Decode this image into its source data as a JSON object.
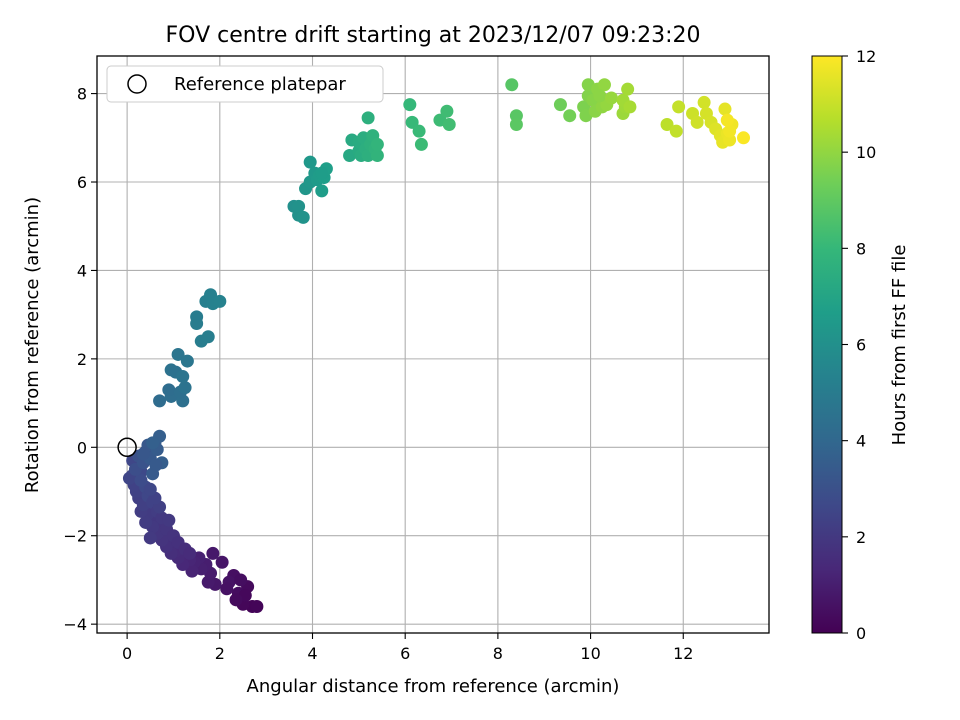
{
  "chart_data": {
    "type": "scatter",
    "title": "FOV centre drift starting at 2023/12/07 09:23:20",
    "xlabel": "Angular distance from reference (arcmin)",
    "ylabel": "Rotation from reference (arcmin)",
    "xlim": [
      -0.65,
      13.85
    ],
    "ylim": [
      -4.2,
      8.85
    ],
    "xticks": [
      0,
      2,
      4,
      6,
      8,
      10,
      12
    ],
    "yticks": [
      -4,
      -2,
      0,
      2,
      4,
      6,
      8
    ],
    "grid": true,
    "legend": {
      "position": "top-left",
      "entries": [
        "Reference platepar"
      ]
    },
    "reference_point": {
      "x": 0,
      "y": 0,
      "label": "Reference platepar"
    },
    "colorbar": {
      "label": "Hours from first FF file",
      "range": [
        0,
        12
      ],
      "ticks": [
        0,
        2,
        4,
        6,
        8,
        10,
        12
      ],
      "colormap": "viridis",
      "stops": [
        "#440154",
        "#482878",
        "#3e4989",
        "#31688e",
        "#26828e",
        "#1f9e89",
        "#35b779",
        "#6ece58",
        "#b5de2b",
        "#fde725"
      ]
    },
    "points": [
      {
        "x": 2.7,
        "y": -3.6,
        "t": 0.1
      },
      {
        "x": 2.5,
        "y": -3.55,
        "t": 0.2
      },
      {
        "x": 2.8,
        "y": -3.6,
        "t": 0.15
      },
      {
        "x": 2.6,
        "y": -3.15,
        "t": 0.3
      },
      {
        "x": 2.4,
        "y": -3.3,
        "t": 0.4
      },
      {
        "x": 2.3,
        "y": -2.9,
        "t": 0.5
      },
      {
        "x": 2.2,
        "y": -3.05,
        "t": 0.6
      },
      {
        "x": 2.15,
        "y": -3.2,
        "t": 0.55
      },
      {
        "x": 2.45,
        "y": -3.0,
        "t": 0.45
      },
      {
        "x": 2.55,
        "y": -3.35,
        "t": 0.25
      },
      {
        "x": 2.35,
        "y": -3.45,
        "t": 0.35
      },
      {
        "x": 2.05,
        "y": -2.6,
        "t": 0.7
      },
      {
        "x": 1.85,
        "y": -2.4,
        "t": 0.8
      },
      {
        "x": 1.9,
        "y": -3.1,
        "t": 0.75
      },
      {
        "x": 1.75,
        "y": -3.05,
        "t": 0.85
      },
      {
        "x": 1.8,
        "y": -2.85,
        "t": 0.9
      },
      {
        "x": 1.7,
        "y": -2.65,
        "t": 1.0
      },
      {
        "x": 1.6,
        "y": -2.75,
        "t": 1.05
      },
      {
        "x": 1.55,
        "y": -2.5,
        "t": 1.1
      },
      {
        "x": 1.45,
        "y": -2.6,
        "t": 1.15
      },
      {
        "x": 1.4,
        "y": -2.8,
        "t": 1.2
      },
      {
        "x": 1.35,
        "y": -2.55,
        "t": 1.25
      },
      {
        "x": 1.25,
        "y": -2.45,
        "t": 1.3
      },
      {
        "x": 1.2,
        "y": -2.65,
        "t": 1.35
      },
      {
        "x": 1.15,
        "y": -2.3,
        "t": 1.4
      },
      {
        "x": 1.1,
        "y": -2.5,
        "t": 1.45
      },
      {
        "x": 1.05,
        "y": -2.35,
        "t": 1.5
      },
      {
        "x": 1.0,
        "y": -2.2,
        "t": 1.55
      },
      {
        "x": 0.95,
        "y": -2.4,
        "t": 1.6
      },
      {
        "x": 0.9,
        "y": -2.05,
        "t": 1.65
      },
      {
        "x": 0.85,
        "y": -2.25,
        "t": 1.7
      },
      {
        "x": 0.8,
        "y": -1.9,
        "t": 1.75
      },
      {
        "x": 0.75,
        "y": -2.1,
        "t": 1.8
      },
      {
        "x": 0.7,
        "y": -1.75,
        "t": 1.85
      },
      {
        "x": 0.65,
        "y": -1.95,
        "t": 1.9
      },
      {
        "x": 0.6,
        "y": -1.6,
        "t": 1.95
      },
      {
        "x": 0.55,
        "y": -1.8,
        "t": 2.0
      },
      {
        "x": 0.5,
        "y": -2.05,
        "t": 2.05
      },
      {
        "x": 0.45,
        "y": -1.5,
        "t": 2.1
      },
      {
        "x": 0.4,
        "y": -1.7,
        "t": 2.15
      },
      {
        "x": 0.3,
        "y": -1.45,
        "t": 2.2
      },
      {
        "x": 0.25,
        "y": -1.15,
        "t": 2.25
      },
      {
        "x": 0.35,
        "y": -1.3,
        "t": 2.3
      },
      {
        "x": 0.2,
        "y": -1.0,
        "t": 2.35
      },
      {
        "x": 0.15,
        "y": -0.85,
        "t": 2.4
      },
      {
        "x": 0.1,
        "y": -0.65,
        "t": 2.45
      },
      {
        "x": 0.05,
        "y": -0.7,
        "t": 2.5
      },
      {
        "x": 0.2,
        "y": -0.45,
        "t": 2.55
      },
      {
        "x": 0.12,
        "y": -0.3,
        "t": 2.6
      },
      {
        "x": 0.3,
        "y": -0.55,
        "t": 2.65
      },
      {
        "x": 0.4,
        "y": -0.9,
        "t": 2.7
      },
      {
        "x": 0.45,
        "y": -1.1,
        "t": 2.6
      },
      {
        "x": 0.55,
        "y": -1.25,
        "t": 2.4
      },
      {
        "x": 0.65,
        "y": -1.45,
        "t": 2.2
      },
      {
        "x": 0.75,
        "y": -1.6,
        "t": 2.0
      },
      {
        "x": 0.85,
        "y": -1.85,
        "t": 1.9
      },
      {
        "x": 1.0,
        "y": -2.0,
        "t": 1.8
      },
      {
        "x": 1.1,
        "y": -2.15,
        "t": 1.7
      },
      {
        "x": 1.25,
        "y": -2.3,
        "t": 1.6
      },
      {
        "x": 1.35,
        "y": -2.4,
        "t": 1.5
      },
      {
        "x": 0.9,
        "y": -1.65,
        "t": 2.0
      },
      {
        "x": 0.7,
        "y": -1.35,
        "t": 2.3
      },
      {
        "x": 0.6,
        "y": -1.15,
        "t": 2.4
      },
      {
        "x": 0.5,
        "y": -0.95,
        "t": 2.6
      },
      {
        "x": 0.3,
        "y": -0.75,
        "t": 2.8
      },
      {
        "x": 0.18,
        "y": -0.5,
        "t": 2.9
      },
      {
        "x": 0.25,
        "y": -0.2,
        "t": 3.0
      },
      {
        "x": 0.35,
        "y": -0.35,
        "t": 3.1
      },
      {
        "x": 0.4,
        "y": -0.1,
        "t": 3.2
      },
      {
        "x": 0.45,
        "y": 0.05,
        "t": 3.3
      },
      {
        "x": 0.5,
        "y": -0.25,
        "t": 3.35
      },
      {
        "x": 0.55,
        "y": -0.6,
        "t": 3.4
      },
      {
        "x": 0.6,
        "y": 0.1,
        "t": 3.45
      },
      {
        "x": 0.65,
        "y": -0.05,
        "t": 3.5
      },
      {
        "x": 0.7,
        "y": 0.25,
        "t": 3.6
      },
      {
        "x": 0.75,
        "y": -0.35,
        "t": 3.55
      },
      {
        "x": 0.55,
        "y": 0.1,
        "t": 3.65
      },
      {
        "x": 0.35,
        "y": -0.15,
        "t": 3.25
      },
      {
        "x": 0.62,
        "y": -0.4,
        "t": 3.4
      },
      {
        "x": 0.7,
        "y": 1.05,
        "t": 4.2
      },
      {
        "x": 0.95,
        "y": 1.15,
        "t": 4.3
      },
      {
        "x": 0.9,
        "y": 1.3,
        "t": 4.25
      },
      {
        "x": 1.2,
        "y": 1.05,
        "t": 4.4
      },
      {
        "x": 1.15,
        "y": 1.25,
        "t": 4.35
      },
      {
        "x": 0.95,
        "y": 1.75,
        "t": 4.5
      },
      {
        "x": 1.05,
        "y": 1.7,
        "t": 4.45
      },
      {
        "x": 1.25,
        "y": 1.35,
        "t": 4.55
      },
      {
        "x": 1.2,
        "y": 1.6,
        "t": 4.6
      },
      {
        "x": 1.1,
        "y": 2.1,
        "t": 4.65
      },
      {
        "x": 1.3,
        "y": 1.95,
        "t": 4.7
      },
      {
        "x": 1.5,
        "y": 2.8,
        "t": 5.0
      },
      {
        "x": 1.5,
        "y": 2.95,
        "t": 5.05
      },
      {
        "x": 1.6,
        "y": 2.4,
        "t": 5.1
      },
      {
        "x": 1.75,
        "y": 2.5,
        "t": 5.15
      },
      {
        "x": 1.7,
        "y": 3.3,
        "t": 5.2
      },
      {
        "x": 1.8,
        "y": 3.45,
        "t": 5.25
      },
      {
        "x": 1.85,
        "y": 3.25,
        "t": 5.3
      },
      {
        "x": 2.0,
        "y": 3.3,
        "t": 5.35
      },
      {
        "x": 3.6,
        "y": 5.45,
        "t": 6.0
      },
      {
        "x": 3.7,
        "y": 5.25,
        "t": 6.05
      },
      {
        "x": 3.7,
        "y": 5.45,
        "t": 6.1
      },
      {
        "x": 3.8,
        "y": 5.2,
        "t": 6.15
      },
      {
        "x": 3.85,
        "y": 5.85,
        "t": 6.3
      },
      {
        "x": 3.95,
        "y": 6.0,
        "t": 6.35
      },
      {
        "x": 3.95,
        "y": 6.45,
        "t": 6.4
      },
      {
        "x": 4.05,
        "y": 6.2,
        "t": 6.45
      },
      {
        "x": 4.1,
        "y": 6.05,
        "t": 6.5
      },
      {
        "x": 4.15,
        "y": 6.15,
        "t": 6.55
      },
      {
        "x": 4.2,
        "y": 5.8,
        "t": 6.6
      },
      {
        "x": 4.25,
        "y": 6.1,
        "t": 6.65
      },
      {
        "x": 4.3,
        "y": 6.3,
        "t": 6.7
      },
      {
        "x": 4.2,
        "y": 6.2,
        "t": 6.6
      },
      {
        "x": 4.8,
        "y": 6.6,
        "t": 7.2
      },
      {
        "x": 4.85,
        "y": 6.95,
        "t": 7.25
      },
      {
        "x": 5.0,
        "y": 6.7,
        "t": 7.3
      },
      {
        "x": 5.0,
        "y": 6.9,
        "t": 7.35
      },
      {
        "x": 5.05,
        "y": 6.6,
        "t": 7.4
      },
      {
        "x": 5.1,
        "y": 7.0,
        "t": 7.45
      },
      {
        "x": 5.15,
        "y": 6.75,
        "t": 7.5
      },
      {
        "x": 5.2,
        "y": 6.6,
        "t": 7.55
      },
      {
        "x": 5.2,
        "y": 7.45,
        "t": 7.6
      },
      {
        "x": 5.25,
        "y": 6.85,
        "t": 7.65
      },
      {
        "x": 5.3,
        "y": 7.05,
        "t": 7.7
      },
      {
        "x": 5.35,
        "y": 6.75,
        "t": 7.75
      },
      {
        "x": 5.4,
        "y": 6.6,
        "t": 7.8
      },
      {
        "x": 5.4,
        "y": 6.85,
        "t": 7.85
      },
      {
        "x": 6.1,
        "y": 7.75,
        "t": 8.0
      },
      {
        "x": 6.15,
        "y": 7.35,
        "t": 8.05
      },
      {
        "x": 6.3,
        "y": 7.15,
        "t": 8.1
      },
      {
        "x": 6.35,
        "y": 6.85,
        "t": 8.15
      },
      {
        "x": 6.75,
        "y": 7.4,
        "t": 8.2
      },
      {
        "x": 6.9,
        "y": 7.6,
        "t": 8.25
      },
      {
        "x": 6.95,
        "y": 7.3,
        "t": 8.3
      },
      {
        "x": 8.3,
        "y": 8.2,
        "t": 8.8
      },
      {
        "x": 8.4,
        "y": 7.5,
        "t": 8.85
      },
      {
        "x": 8.4,
        "y": 7.3,
        "t": 8.9
      },
      {
        "x": 9.35,
        "y": 7.75,
        "t": 9.3
      },
      {
        "x": 9.55,
        "y": 7.5,
        "t": 9.4
      },
      {
        "x": 9.85,
        "y": 7.7,
        "t": 9.6
      },
      {
        "x": 9.9,
        "y": 7.5,
        "t": 9.65
      },
      {
        "x": 9.95,
        "y": 7.95,
        "t": 9.7
      },
      {
        "x": 9.95,
        "y": 8.2,
        "t": 9.75
      },
      {
        "x": 10.05,
        "y": 7.85,
        "t": 9.8
      },
      {
        "x": 10.1,
        "y": 7.6,
        "t": 9.85
      },
      {
        "x": 10.15,
        "y": 8.1,
        "t": 9.9
      },
      {
        "x": 10.25,
        "y": 7.7,
        "t": 9.95
      },
      {
        "x": 10.3,
        "y": 8.2,
        "t": 10.0
      },
      {
        "x": 10.35,
        "y": 7.75,
        "t": 10.05
      },
      {
        "x": 10.2,
        "y": 7.95,
        "t": 9.9
      },
      {
        "x": 10.45,
        "y": 7.9,
        "t": 10.1
      },
      {
        "x": 10.7,
        "y": 7.55,
        "t": 10.2
      },
      {
        "x": 10.75,
        "y": 7.7,
        "t": 10.25
      },
      {
        "x": 10.7,
        "y": 7.85,
        "t": 10.3
      },
      {
        "x": 10.8,
        "y": 8.1,
        "t": 10.35
      },
      {
        "x": 10.85,
        "y": 7.7,
        "t": 10.4
      },
      {
        "x": 11.65,
        "y": 7.3,
        "t": 10.8
      },
      {
        "x": 11.85,
        "y": 7.15,
        "t": 10.9
      },
      {
        "x": 11.9,
        "y": 7.7,
        "t": 10.95
      },
      {
        "x": 12.2,
        "y": 7.55,
        "t": 11.1
      },
      {
        "x": 12.3,
        "y": 7.35,
        "t": 11.15
      },
      {
        "x": 12.45,
        "y": 7.8,
        "t": 11.2
      },
      {
        "x": 12.5,
        "y": 7.55,
        "t": 11.25
      },
      {
        "x": 12.6,
        "y": 7.35,
        "t": 11.3
      },
      {
        "x": 12.7,
        "y": 7.2,
        "t": 11.4
      },
      {
        "x": 12.8,
        "y": 7.05,
        "t": 11.5
      },
      {
        "x": 12.9,
        "y": 7.65,
        "t": 11.55
      },
      {
        "x": 12.85,
        "y": 6.9,
        "t": 11.6
      },
      {
        "x": 12.95,
        "y": 7.1,
        "t": 11.65
      },
      {
        "x": 13.0,
        "y": 6.95,
        "t": 11.7
      },
      {
        "x": 13.05,
        "y": 7.3,
        "t": 11.75
      },
      {
        "x": 13.0,
        "y": 7.15,
        "t": 11.8
      },
      {
        "x": 12.95,
        "y": 7.4,
        "t": 11.85
      },
      {
        "x": 13.3,
        "y": 7.0,
        "t": 11.95
      }
    ]
  }
}
